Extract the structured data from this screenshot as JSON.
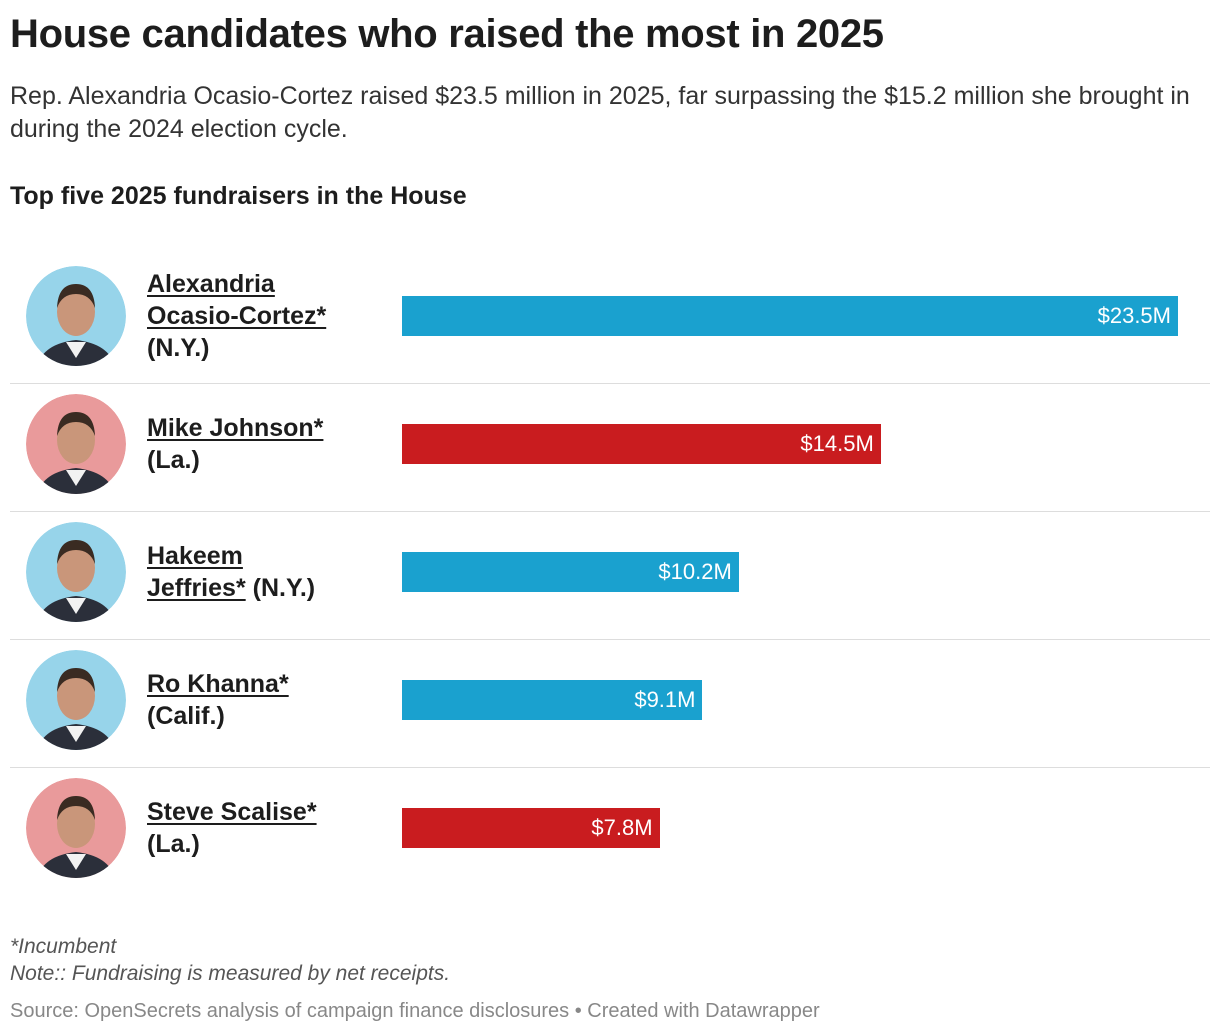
{
  "chart_data": {
    "type": "bar",
    "title": "House candidates who raised the most in 2025",
    "description": "Rep. Alexandria Ocasio-Cortez raised $23.5 million in 2025, far surpassing the $15.2 million she brought in during the 2024 election cycle.",
    "subtitle": "Top five 2025 fundraisers in the House",
    "categories": [
      "Alexandria Ocasio-Cortez*",
      "Mike Johnson*",
      "Hakeem Jeffries*",
      "Ro Khanna*",
      "Steve Scalise*"
    ],
    "states": [
      "(N.Y.)",
      "(La.)",
      "(N.Y.)",
      "(Calif.)",
      "(La.)"
    ],
    "values": [
      23.5,
      14.5,
      10.2,
      9.1,
      7.8
    ],
    "value_labels": [
      "$23.5M",
      "$14.5M",
      "$10.2M",
      "$9.1M",
      "$7.8M"
    ],
    "colors": [
      "#1aa1cf",
      "#c91c1f",
      "#1aa1cf",
      "#1aa1cf",
      "#c91c1f"
    ],
    "photo_backgrounds": [
      "#97d4ea",
      "#e99a9b",
      "#97d4ea",
      "#97d4ea",
      "#e99a9b"
    ],
    "notes": [
      "*Incumbent",
      "Note:: Fundraising is measured by net receipts."
    ],
    "source": "Source: OpenSecrets analysis of campaign finance disclosures • Created with Datawrapper"
  }
}
